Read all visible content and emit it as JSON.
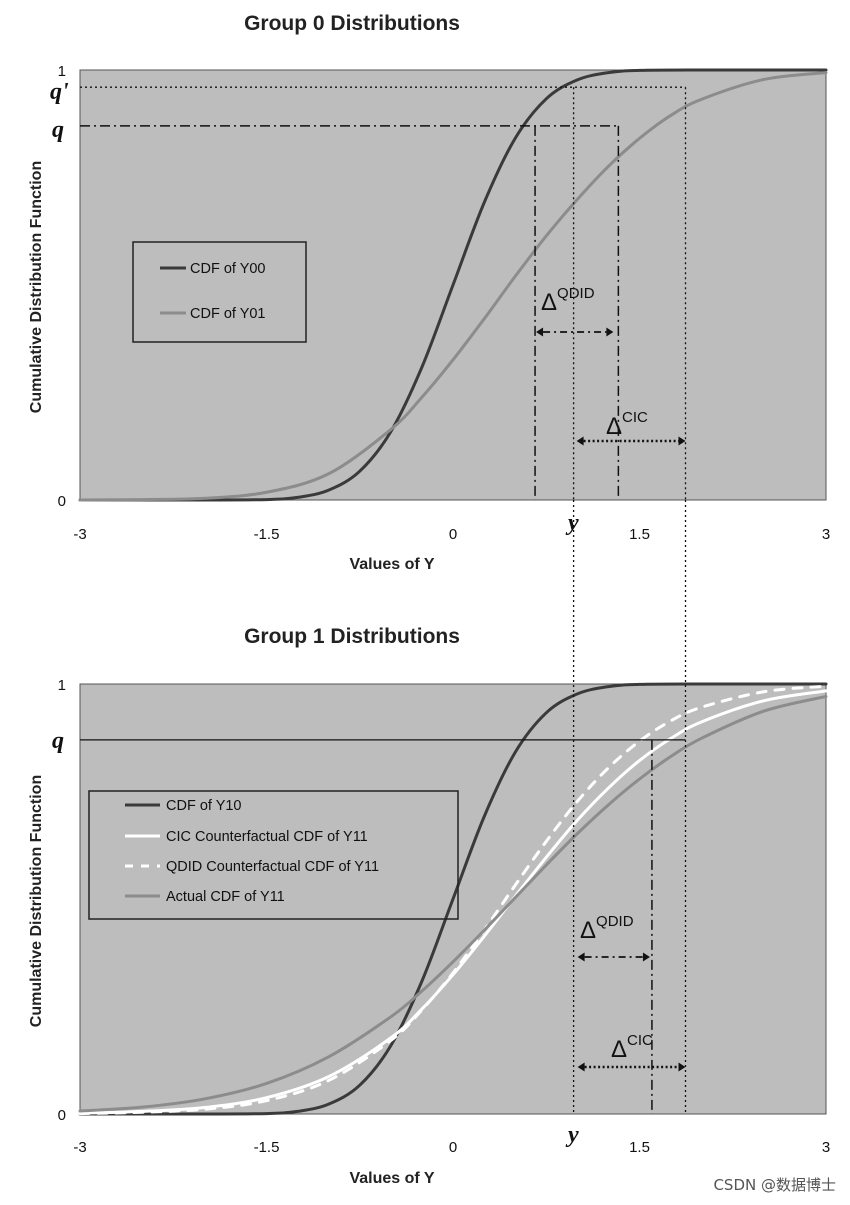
{
  "chart_data": [
    {
      "type": "line",
      "title": "Group 0 Distributions",
      "xlabel": "Values of Y",
      "ylabel": "Cumulative Distribution Function",
      "xlim": [
        -3,
        3
      ],
      "ylim": [
        0,
        1
      ],
      "xticks": [
        "-3",
        "-1.5",
        "0",
        "1.5",
        "3"
      ],
      "yticks": [
        "0",
        "1"
      ],
      "legend_position": "middle-left",
      "series": [
        {
          "name": "CDF of Y00",
          "color": "#3a3a3a",
          "style": "solid",
          "x": [
            -3,
            -2.5,
            -2,
            -1.5,
            -1.25,
            -1,
            -0.75,
            -0.5,
            -0.25,
            0,
            0.25,
            0.5,
            0.75,
            1,
            1.25,
            1.5,
            2,
            2.5,
            3
          ],
          "y": [
            0,
            0,
            0,
            0.001,
            0.006,
            0.023,
            0.067,
            0.159,
            0.309,
            0.5,
            0.691,
            0.841,
            0.933,
            0.977,
            0.994,
            0.999,
            1,
            1,
            1
          ]
        },
        {
          "name": "CDF of Y01",
          "color": "#8c8c8c",
          "style": "solid",
          "x": [
            -3,
            -2.5,
            -2,
            -1.5,
            -1,
            -0.5,
            -0.25,
            0,
            0.25,
            0.5,
            0.75,
            1,
            1.25,
            1.5,
            1.75,
            2,
            2.5,
            3
          ],
          "y": [
            0,
            0.001,
            0.004,
            0.018,
            0.061,
            0.164,
            0.239,
            0.326,
            0.421,
            0.52,
            0.614,
            0.699,
            0.776,
            0.841,
            0.894,
            0.932,
            0.978,
            0.994
          ]
        }
      ],
      "annotations": {
        "q": 0.87,
        "q_prime": 0.96,
        "y": 0.97,
        "q_label": "q",
        "q_prime_label": "q'",
        "y_label": "y",
        "qdid_x": [
          0.66,
          1.33
        ],
        "cic_x": [
          0.97,
          1.87
        ],
        "delta_symbol": "Δ",
        "qdid_label": "QDID",
        "cic_label": "CIC"
      }
    },
    {
      "type": "line",
      "title": "Group 1 Distributions",
      "xlabel": "Values of Y",
      "ylabel": "Cumulative Distribution Function",
      "xlim": [
        -3,
        3
      ],
      "ylim": [
        0,
        1
      ],
      "xticks": [
        "-3",
        "-1.5",
        "0",
        "1.5",
        "3"
      ],
      "yticks": [
        "0",
        "1"
      ],
      "legend_position": "middle-left",
      "series": [
        {
          "name": "CDF of Y10",
          "color": "#3a3a3a",
          "style": "solid",
          "x": [
            -3,
            -2.5,
            -2,
            -1.5,
            -1.25,
            -1,
            -0.75,
            -0.5,
            -0.25,
            0,
            0.25,
            0.5,
            0.75,
            1,
            1.25,
            1.5,
            2,
            2.5,
            3
          ],
          "y": [
            0,
            0,
            0,
            0.001,
            0.006,
            0.023,
            0.067,
            0.159,
            0.309,
            0.5,
            0.691,
            0.841,
            0.933,
            0.977,
            0.994,
            0.999,
            1,
            1,
            1
          ]
        },
        {
          "name": "CIC Counterfactual CDF of Y11",
          "color": "#ffffff",
          "style": "solid",
          "x": [
            -3,
            -2.5,
            -2,
            -1.5,
            -1,
            -0.5,
            -0.25,
            0,
            0.25,
            0.5,
            0.75,
            1,
            1.25,
            1.5,
            1.75,
            2,
            2.5,
            3
          ],
          "y": [
            0.002,
            0.006,
            0.015,
            0.038,
            0.087,
            0.177,
            0.244,
            0.324,
            0.413,
            0.506,
            0.597,
            0.683,
            0.758,
            0.822,
            0.873,
            0.912,
            0.961,
            0.984
          ]
        },
        {
          "name": "QDID Counterfactual CDF of Y11",
          "color": "#ffffff",
          "style": "dashed",
          "x": [
            -3,
            -2.5,
            -2,
            -1.5,
            -1,
            -0.5,
            -0.25,
            0,
            0.25,
            0.5,
            0.75,
            1,
            1.25,
            1.5,
            1.75,
            2,
            2.5,
            3
          ],
          "y": [
            0.001,
            0.004,
            0.011,
            0.031,
            0.078,
            0.171,
            0.242,
            0.328,
            0.427,
            0.532,
            0.634,
            0.727,
            0.805,
            0.867,
            0.914,
            0.946,
            0.982,
            0.995
          ]
        },
        {
          "name": "Actual CDF of Y11",
          "color": "#8c8c8c",
          "style": "solid",
          "x": [
            -3,
            -2.5,
            -2,
            -1.5,
            -1,
            -0.5,
            -0.25,
            0,
            0.25,
            0.5,
            0.75,
            1,
            1.25,
            1.5,
            1.75,
            2,
            2.5,
            3
          ],
          "y": [
            0.007,
            0.016,
            0.035,
            0.071,
            0.133,
            0.226,
            0.286,
            0.354,
            0.427,
            0.503,
            0.579,
            0.652,
            0.719,
            0.779,
            0.831,
            0.874,
            0.937,
            0.971
          ]
        }
      ],
      "annotations": {
        "q": 0.87,
        "y": 0.97,
        "q_label": "q",
        "y_label": "y",
        "qdid_x": [
          0.97,
          1.6
        ],
        "cic_x": [
          0.97,
          1.87
        ],
        "qdid_value_x": 1.6,
        "delta_symbol": "Δ",
        "qdid_label": "QDID",
        "cic_label": "CIC"
      }
    }
  ],
  "watermark": "CSDN @数据博士"
}
